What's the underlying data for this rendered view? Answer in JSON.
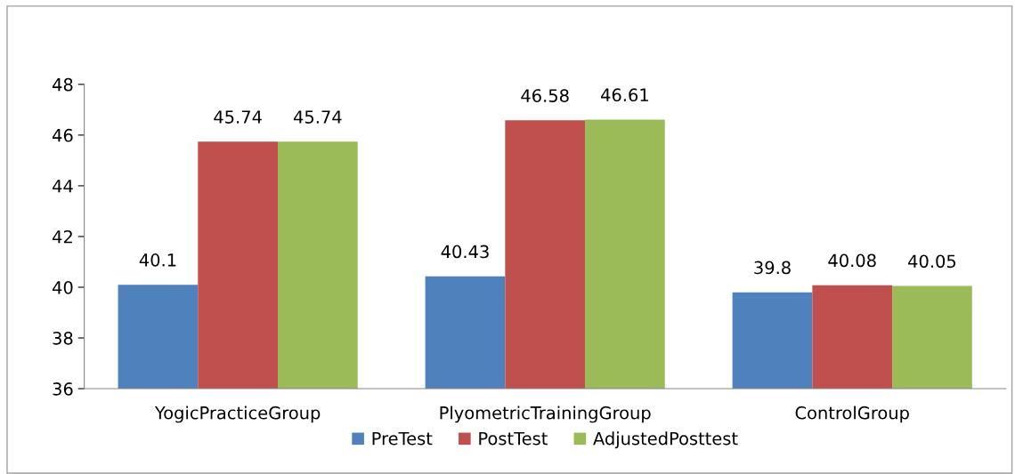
{
  "chart_data": {
    "type": "bar",
    "categories": [
      "YogicPracticeGroup",
      "PlyometricTrainingGroup",
      "ControlGroup"
    ],
    "series": [
      {
        "name": "PreTest",
        "color": "#4f81bd",
        "values": [
          40.1,
          40.43,
          39.8
        ]
      },
      {
        "name": "PostTest",
        "color": "#c0504d",
        "values": [
          45.74,
          46.58,
          40.08
        ]
      },
      {
        "name": "AdjustedPosttest",
        "color": "#9bbb59",
        "values": [
          45.74,
          46.61,
          40.05
        ]
      }
    ],
    "ylim": [
      36,
      48
    ],
    "yticks": [
      36,
      38,
      40,
      42,
      44,
      46,
      48
    ],
    "data_labels": true,
    "grid": false,
    "legend": "bottom"
  }
}
